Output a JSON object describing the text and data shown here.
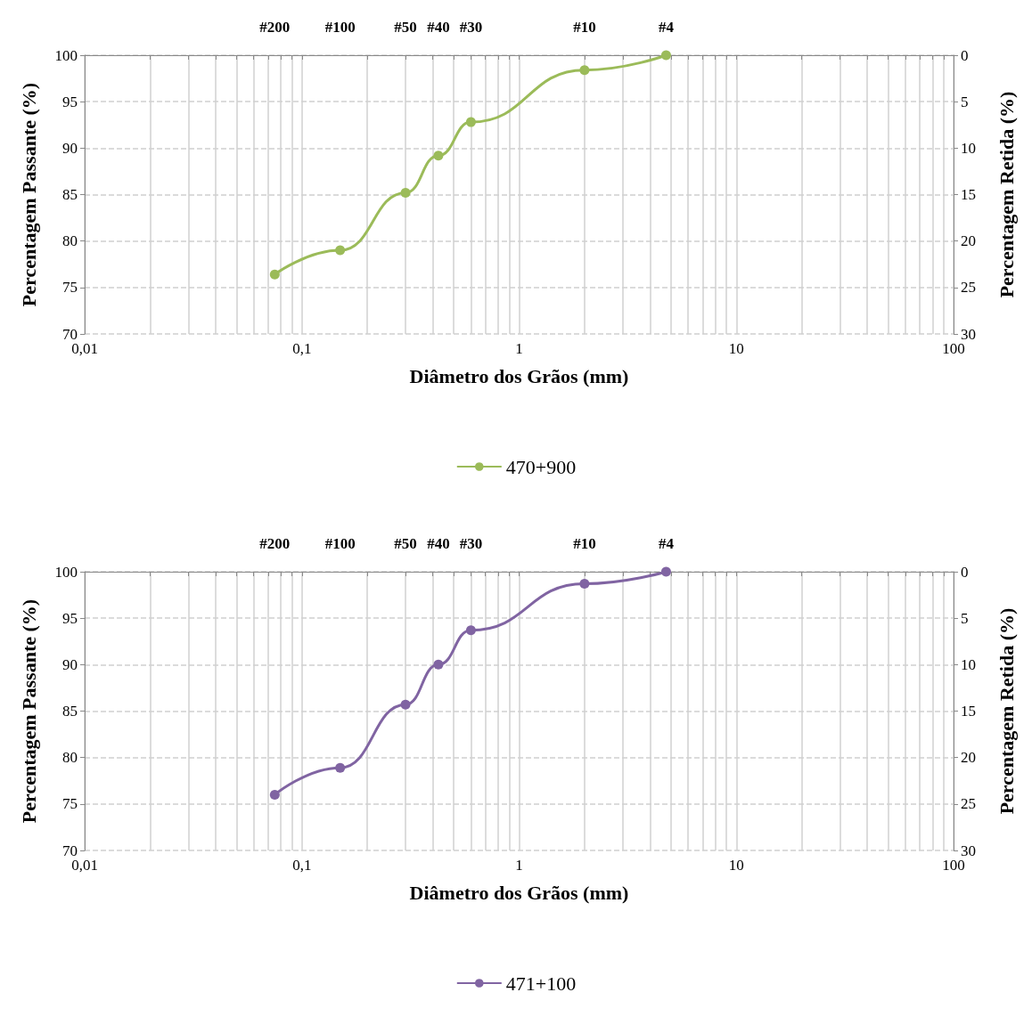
{
  "chart_data": [
    {
      "type": "line",
      "xlabel": "Diâmetro dos Grãos (mm)",
      "ylabel": "Percentagem Passante (%)",
      "y2label": "Percentagem Retida (%)",
      "log": "x",
      "xlim": [
        0.01,
        100
      ],
      "xticks": [
        {
          "value": 0.01,
          "label": "0,01"
        },
        {
          "value": 0.02,
          "label": null
        },
        {
          "value": 0.03,
          "label": null
        },
        {
          "value": 0.04,
          "label": null
        },
        {
          "value": 0.05,
          "label": null
        },
        {
          "value": 0.06,
          "label": null
        },
        {
          "value": 0.07,
          "label": null
        },
        {
          "value": 0.08,
          "label": null
        },
        {
          "value": 0.09,
          "label": null
        },
        {
          "value": 0.1,
          "label": "0,1"
        },
        {
          "value": 0.2,
          "label": null
        },
        {
          "value": 0.3,
          "label": null
        },
        {
          "value": 0.4,
          "label": null
        },
        {
          "value": 0.5,
          "label": null
        },
        {
          "value": 0.6,
          "label": null
        },
        {
          "value": 0.7,
          "label": null
        },
        {
          "value": 0.8,
          "label": null
        },
        {
          "value": 0.9,
          "label": null
        },
        1,
        {
          "value": 2,
          "label": null
        },
        {
          "value": 3,
          "label": null
        },
        {
          "value": 4,
          "label": null
        },
        {
          "value": 5,
          "label": null
        },
        {
          "value": 6,
          "label": null
        },
        {
          "value": 7,
          "label": null
        },
        {
          "value": 8,
          "label": null
        },
        {
          "value": 9,
          "label": null
        },
        10,
        {
          "value": 20,
          "label": null
        },
        {
          "value": 30,
          "label": null
        },
        {
          "value": 40,
          "label": null
        },
        {
          "value": 50,
          "label": null
        },
        {
          "value": 60,
          "label": null
        },
        {
          "value": 70,
          "label": null
        },
        {
          "value": 80,
          "label": null
        },
        {
          "value": 90,
          "label": null
        },
        100
      ],
      "annotations": [
        "#200",
        "#100",
        "#50",
        "#40",
        "#30",
        "#10",
        "#4"
      ],
      "ylim": [
        70,
        100
      ],
      "yticks": [
        70,
        75,
        80,
        85,
        90,
        95,
        100
      ],
      "y2lim": [
        30,
        0
      ],
      "y2ticks": [
        0,
        5,
        10,
        15,
        20,
        25,
        30
      ],
      "grid": true,
      "legend": "bottom",
      "marker": "circle",
      "x": [
        0.075,
        0.15,
        0.3,
        0.425,
        0.6,
        2,
        4.75
      ],
      "series": [
        {
          "name": "470+900",
          "color": "#9bbb59",
          "values": [
            76.4,
            79.0,
            85.2,
            89.2,
            92.8,
            98.4,
            100
          ]
        }
      ]
    },
    {
      "type": "line",
      "xlabel": "Diâmetro dos Grãos (mm)",
      "ylabel": "Percentagem Passante (%)",
      "y2label": "Percentagem Retida (%)",
      "log": "x",
      "xlim": [
        0.01,
        100
      ],
      "xticks": [
        {
          "value": 0.01,
          "label": "0,01"
        },
        {
          "value": 0.02,
          "label": null
        },
        {
          "value": 0.03,
          "label": null
        },
        {
          "value": 0.04,
          "label": null
        },
        {
          "value": 0.05,
          "label": null
        },
        {
          "value": 0.06,
          "label": null
        },
        {
          "value": 0.07,
          "label": null
        },
        {
          "value": 0.08,
          "label": null
        },
        {
          "value": 0.09,
          "label": null
        },
        {
          "value": 0.1,
          "label": "0,1"
        },
        {
          "value": 0.2,
          "label": null
        },
        {
          "value": 0.3,
          "label": null
        },
        {
          "value": 0.4,
          "label": null
        },
        {
          "value": 0.5,
          "label": null
        },
        {
          "value": 0.6,
          "label": null
        },
        {
          "value": 0.7,
          "label": null
        },
        {
          "value": 0.8,
          "label": null
        },
        {
          "value": 0.9,
          "label": null
        },
        1,
        {
          "value": 2,
          "label": null
        },
        {
          "value": 3,
          "label": null
        },
        {
          "value": 4,
          "label": null
        },
        {
          "value": 5,
          "label": null
        },
        {
          "value": 6,
          "label": null
        },
        {
          "value": 7,
          "label": null
        },
        {
          "value": 8,
          "label": null
        },
        {
          "value": 9,
          "label": null
        },
        10,
        {
          "value": 20,
          "label": null
        },
        {
          "value": 30,
          "label": null
        },
        {
          "value": 40,
          "label": null
        },
        {
          "value": 50,
          "label": null
        },
        {
          "value": 60,
          "label": null
        },
        {
          "value": 70,
          "label": null
        },
        {
          "value": 80,
          "label": null
        },
        {
          "value": 90,
          "label": null
        },
        100
      ],
      "annotations": [
        "#200",
        "#100",
        "#50",
        "#40",
        "#30",
        "#10",
        "#4"
      ],
      "ylim": [
        70,
        100
      ],
      "yticks": [
        70,
        75,
        80,
        85,
        90,
        95,
        100
      ],
      "y2lim": [
        30,
        0
      ],
      "y2ticks": [
        0,
        5,
        10,
        15,
        20,
        25,
        30
      ],
      "grid": true,
      "legend": "bottom",
      "marker": "circle",
      "x": [
        0.075,
        0.15,
        0.3,
        0.425,
        0.6,
        2,
        4.75
      ],
      "series": [
        {
          "name": "471+100",
          "color": "#8064a2",
          "values": [
            76.0,
            78.9,
            85.7,
            90.0,
            93.7,
            98.7,
            100
          ]
        }
      ]
    }
  ]
}
